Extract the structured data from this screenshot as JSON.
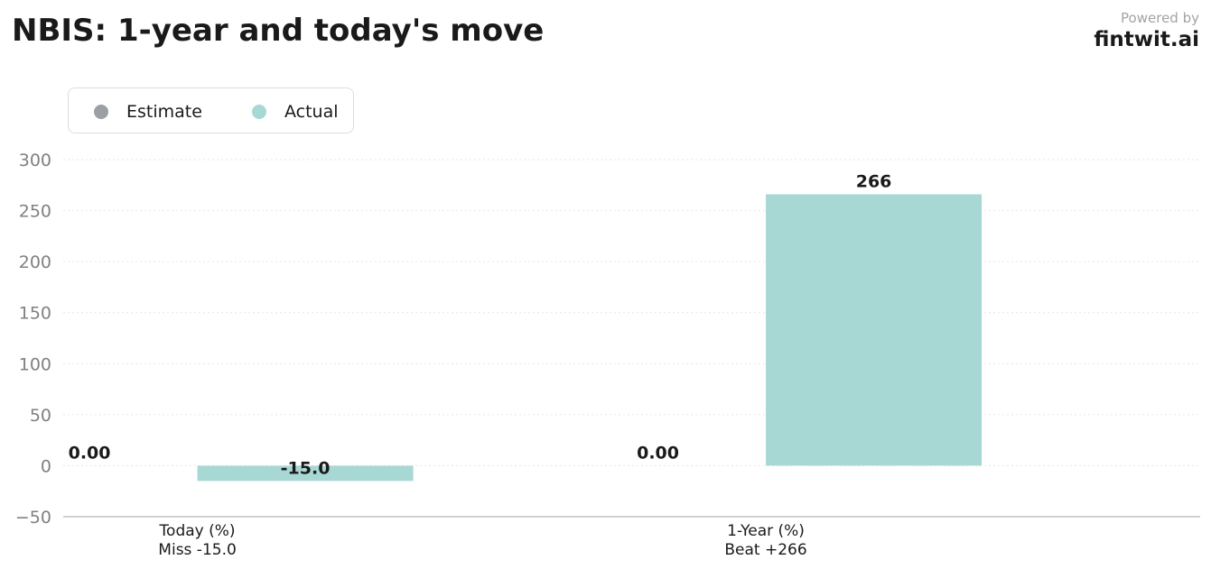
{
  "header": {
    "title": "NBIS: 1-year and today's move",
    "powered_by": "Powered by",
    "brand": "fintwit.ai"
  },
  "legend": {
    "items": [
      {
        "label": "Estimate",
        "color": "#9aa0a6"
      },
      {
        "label": "Actual",
        "color": "#a8d8d4"
      }
    ]
  },
  "chart_data": {
    "type": "bar",
    "title": "NBIS: 1-year and today's move",
    "categories": [
      "Today (%)",
      "1-Year (%)"
    ],
    "category_sublabels": [
      "Miss -15.0",
      "Beat +266"
    ],
    "series": [
      {
        "name": "Estimate",
        "color": "#9aa0a6",
        "values": [
          0.0,
          0.0
        ],
        "labels": [
          "0.00",
          "0.00"
        ]
      },
      {
        "name": "Actual",
        "color": "#a8d8d4",
        "values": [
          -15.0,
          266
        ],
        "labels": [
          "-15.0",
          "266"
        ]
      }
    ],
    "ylim": [
      -50,
      300
    ],
    "yticks": [
      -50,
      0,
      50,
      100,
      150,
      200,
      250,
      300
    ],
    "ytick_labels": [
      "−50",
      "0",
      "50",
      "100",
      "150",
      "200",
      "250",
      "300"
    ],
    "grid": true,
    "legend_position": "top-left"
  }
}
